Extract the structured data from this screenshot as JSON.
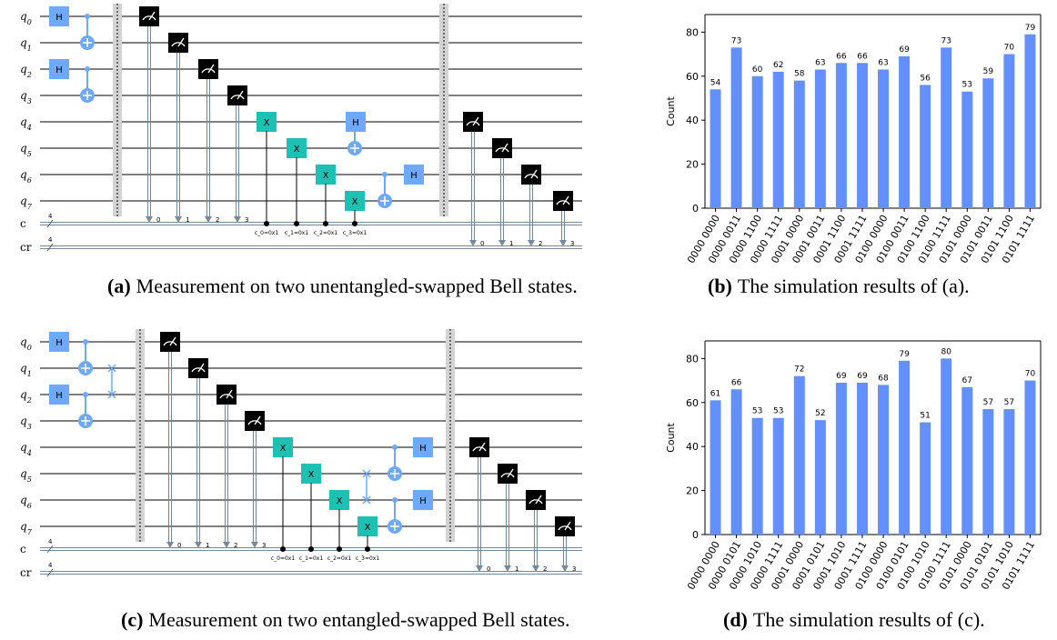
{
  "captions": [
    {
      "tag": "(a)",
      "text": "Measurement on two unentangled-swapped Bell states."
    },
    {
      "tag": "(b)",
      "text": "The simulation results of (a)."
    },
    {
      "tag": "(c)",
      "text": "Measurement on two entangled-swapped Bell states."
    },
    {
      "tag": "(d)",
      "text": "The simulation results of (c)."
    }
  ],
  "circuit": {
    "qubits": [
      "0",
      "1",
      "2",
      "3",
      "4",
      "5",
      "6",
      "7"
    ],
    "qubit_prefix": "q",
    "classical_regs": [
      {
        "name": "c",
        "size": "4"
      },
      {
        "name": "cr",
        "size": "4"
      }
    ],
    "h_label": "H",
    "x_label": "X",
    "conditions": [
      "c_0=0x1",
      "c_1=0x1",
      "c_2=0x1",
      "c_3=0x1"
    ],
    "bit_labels": [
      "0",
      "1",
      "2",
      "3"
    ]
  },
  "chart_data": [
    {
      "type": "bar",
      "categories": [
        "0000 0000",
        "0000 0011",
        "0000 1100",
        "0000 1111",
        "0001 0000",
        "0001 0011",
        "0001 1100",
        "0001 1111",
        "0100 0000",
        "0100 0011",
        "0100 1100",
        "0100 1111",
        "0101 0000",
        "0101 0011",
        "0101 1100",
        "0101 1111"
      ],
      "values": [
        54,
        73,
        60,
        62,
        58,
        63,
        66,
        66,
        63,
        69,
        56,
        73,
        53,
        59,
        70,
        79
      ],
      "ylabel": "Count",
      "ylim": [
        0,
        88
      ],
      "yticks": [
        0,
        20,
        40,
        60,
        80
      ],
      "color": "#648fff"
    },
    {
      "type": "bar",
      "categories": [
        "0000 0000",
        "0000 0101",
        "0000 1010",
        "0000 1111",
        "0001 0000",
        "0001 0101",
        "0001 1010",
        "0001 1111",
        "0100 0000",
        "0100 0101",
        "0100 1010",
        "0100 1111",
        "0101 0000",
        "0101 0101",
        "0101 1010",
        "0101 1111"
      ],
      "values": [
        61,
        66,
        53,
        53,
        72,
        52,
        69,
        69,
        68,
        79,
        51,
        80,
        67,
        57,
        57,
        70
      ],
      "ylabel": "Count",
      "ylim": [
        0,
        88
      ],
      "yticks": [
        0,
        20,
        40,
        60,
        80
      ],
      "color": "#648fff"
    }
  ],
  "colors": {
    "h_gate": "#6fa8ff",
    "x_gate": "#1fc0b4",
    "cnot": "#6fa8ff",
    "measure": "#000000",
    "barrier": "#d3d3d3",
    "classical_wire": "#778899"
  }
}
